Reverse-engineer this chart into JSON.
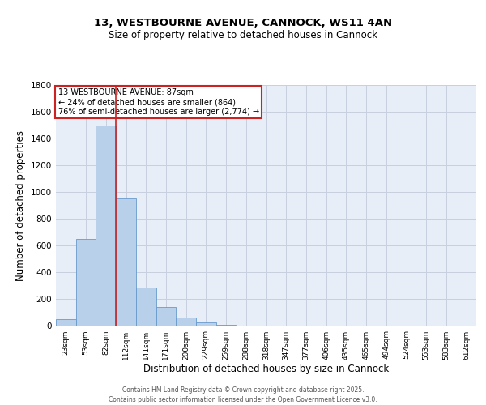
{
  "title1": "13, WESTBOURNE AVENUE, CANNOCK, WS11 4AN",
  "title2": "Size of property relative to detached houses in Cannock",
  "xlabel": "Distribution of detached houses by size in Cannock",
  "ylabel": "Number of detached properties",
  "bar_labels": [
    "23sqm",
    "53sqm",
    "82sqm",
    "112sqm",
    "141sqm",
    "171sqm",
    "200sqm",
    "229sqm",
    "259sqm",
    "288sqm",
    "318sqm",
    "347sqm",
    "377sqm",
    "406sqm",
    "435sqm",
    "465sqm",
    "494sqm",
    "524sqm",
    "553sqm",
    "583sqm",
    "612sqm"
  ],
  "bar_values": [
    50,
    650,
    1500,
    950,
    290,
    140,
    65,
    25,
    10,
    5,
    3,
    3,
    2,
    2,
    0,
    0,
    0,
    0,
    0,
    0,
    0
  ],
  "bar_color": "#b8d0ea",
  "bar_edge_color": "#6699cc",
  "bg_color": "#e8eef8",
  "grid_color": "#c8d0e0",
  "vline_color": "#cc2222",
  "annotation_lines": [
    "13 WESTBOURNE AVENUE: 87sqm",
    "← 24% of detached houses are smaller (864)",
    "76% of semi-detached houses are larger (2,774) →"
  ],
  "annotation_box_color": "#ffffff",
  "annotation_box_edge": "#cc2222",
  "ylim": [
    0,
    1800
  ],
  "yticks": [
    0,
    200,
    400,
    600,
    800,
    1000,
    1200,
    1400,
    1600,
    1800
  ],
  "footer1": "Contains HM Land Registry data © Crown copyright and database right 2025.",
  "footer2": "Contains public sector information licensed under the Open Government Licence v3.0.",
  "vline_pos": 2.5
}
